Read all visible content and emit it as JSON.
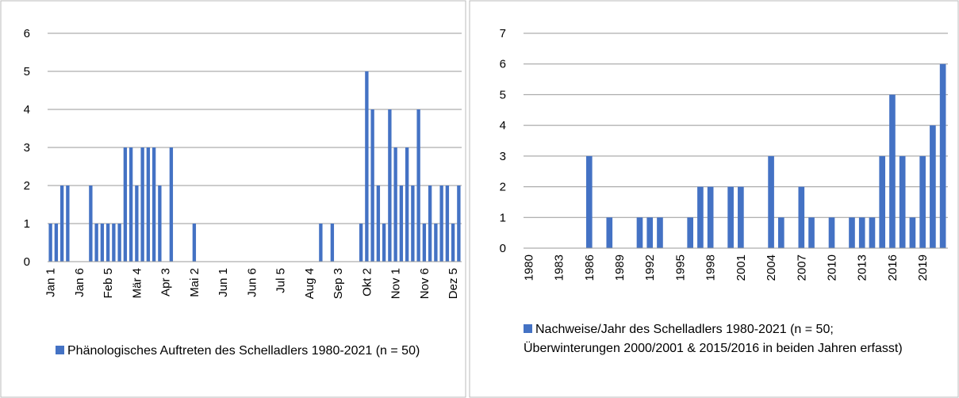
{
  "chart_data": [
    {
      "type": "bar",
      "color": "#4472c4",
      "grid": true,
      "ylim": [
        0,
        6
      ],
      "yticks": [
        0,
        1,
        2,
        3,
        4,
        5,
        6
      ],
      "legend": "Phänologisches Auftreten des Schelladlers 1980-2021 (n = 50)",
      "categories": [
        "Jan 1",
        null,
        null,
        null,
        null,
        "Jan 6",
        null,
        null,
        null,
        null,
        "Feb 5",
        null,
        null,
        null,
        null,
        "Mär 4",
        null,
        null,
        null,
        null,
        "Apr 3",
        null,
        null,
        null,
        null,
        "Mai 2",
        null,
        null,
        null,
        null,
        "Jun 1",
        null,
        null,
        null,
        null,
        "Jun 6",
        null,
        null,
        null,
        null,
        "Jul 5",
        null,
        null,
        null,
        null,
        "Aug 4",
        null,
        null,
        null,
        null,
        "Sep 3",
        null,
        null,
        null,
        null,
        "Okt 2",
        null,
        null,
        null,
        null,
        "Nov 1",
        null,
        null,
        null,
        null,
        "Nov 6",
        null,
        null,
        null,
        null,
        "Dez 5",
        null
      ],
      "values": [
        1,
        1,
        2,
        2,
        0,
        0,
        0,
        2,
        1,
        1,
        1,
        1,
        1,
        3,
        3,
        2,
        3,
        3,
        3,
        2,
        0,
        3,
        0,
        0,
        0,
        1,
        0,
        0,
        0,
        0,
        0,
        0,
        0,
        0,
        0,
        0,
        0,
        0,
        0,
        0,
        0,
        0,
        0,
        0,
        0,
        0,
        0,
        1,
        0,
        1,
        0,
        0,
        0,
        0,
        1,
        5,
        4,
        2,
        1,
        4,
        3,
        2,
        3,
        2,
        4,
        1,
        2,
        1,
        2,
        2,
        1,
        2
      ]
    },
    {
      "type": "bar",
      "color": "#4472c4",
      "grid": true,
      "ylim": [
        0,
        7
      ],
      "yticks": [
        0,
        1,
        2,
        3,
        4,
        5,
        6,
        7
      ],
      "legend": "Nachweise/Jahr des Schelladlers 1980-2021 (n = 50; Überwinterungen 2000/2001 & 2015/2016 in beiden Jahren erfasst)",
      "categories": [
        "1980",
        null,
        null,
        "1983",
        null,
        null,
        "1986",
        null,
        null,
        "1989",
        null,
        null,
        "1992",
        null,
        null,
        "1995",
        null,
        null,
        "1998",
        null,
        null,
        "2001",
        null,
        null,
        "2004",
        null,
        null,
        "2007",
        null,
        null,
        "2010",
        null,
        null,
        "2013",
        null,
        null,
        "2016",
        null,
        null,
        "2019",
        null,
        null
      ],
      "values": [
        0,
        0,
        0,
        0,
        0,
        0,
        3,
        0,
        1,
        0,
        0,
        1,
        1,
        1,
        0,
        0,
        1,
        2,
        2,
        0,
        2,
        2,
        0,
        0,
        3,
        1,
        0,
        2,
        1,
        0,
        1,
        0,
        1,
        1,
        1,
        3,
        5,
        3,
        1,
        3,
        4,
        6
      ]
    }
  ]
}
